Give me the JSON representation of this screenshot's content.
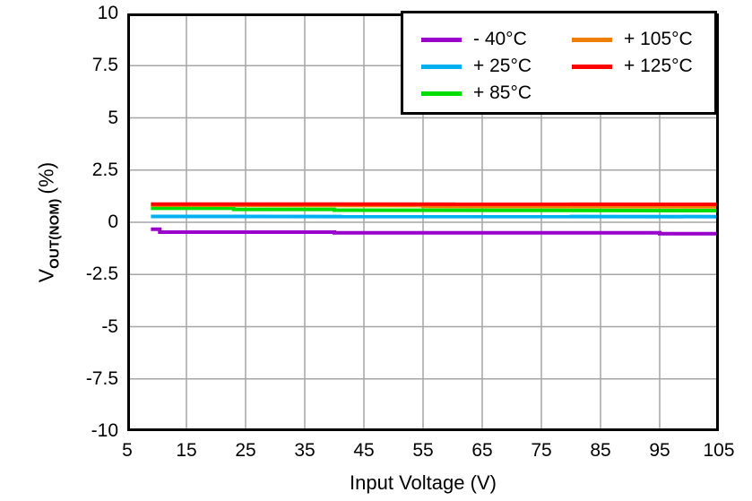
{
  "chart_data": {
    "type": "line",
    "title": "",
    "xlabel": "Input Voltage (V)",
    "ylabel": {
      "var": "V",
      "sub": "OUT(NOM)",
      "unit": "(%)"
    },
    "xlim": [
      5,
      105
    ],
    "ylim": [
      -10,
      10
    ],
    "xticks": [
      5,
      15,
      25,
      35,
      45,
      55,
      65,
      75,
      85,
      95,
      105
    ],
    "yticks": [
      10,
      7.5,
      5,
      2.5,
      0,
      -2.5,
      -5,
      -7.5,
      -10
    ],
    "ytick_labels": [
      "10",
      "7.5",
      "5",
      "2.5",
      "0",
      "-2.5",
      "-5",
      "-7.5",
      "-10"
    ],
    "grid": true,
    "legend_position": "top-right",
    "colors": {
      "grid": "#A6A6A6",
      "axis": "#000000",
      "background": "#FFFFFF"
    },
    "line_width": 4,
    "series": [
      {
        "name": "- 40°C",
        "color": "#9900CC",
        "points": [
          [
            9,
            -0.33
          ],
          [
            10.5,
            -0.33
          ],
          [
            10.5,
            -0.47
          ],
          [
            40,
            -0.47
          ],
          [
            40,
            -0.5
          ],
          [
            95,
            -0.5
          ],
          [
            95,
            -0.55
          ],
          [
            105,
            -0.55
          ]
        ]
      },
      {
        "name": "+ 25°C",
        "color": "#00B0F0",
        "points": [
          [
            9,
            0.28
          ],
          [
            105,
            0.27
          ]
        ]
      },
      {
        "name": "+ 85°C",
        "color": "#00DD00",
        "points": [
          [
            9,
            0.67
          ],
          [
            23,
            0.67
          ],
          [
            23,
            0.62
          ],
          [
            40,
            0.62
          ],
          [
            40,
            0.58
          ],
          [
            105,
            0.56
          ]
        ]
      },
      {
        "name": "+ 105°C",
        "color": "#EE7F00",
        "points": [
          [
            9,
            0.82
          ],
          [
            55,
            0.8
          ],
          [
            55,
            0.76
          ],
          [
            105,
            0.74
          ]
        ]
      },
      {
        "name": "+ 125°C",
        "color": "#FF0000",
        "points": [
          [
            9,
            0.87
          ],
          [
            105,
            0.86
          ]
        ]
      }
    ]
  }
}
